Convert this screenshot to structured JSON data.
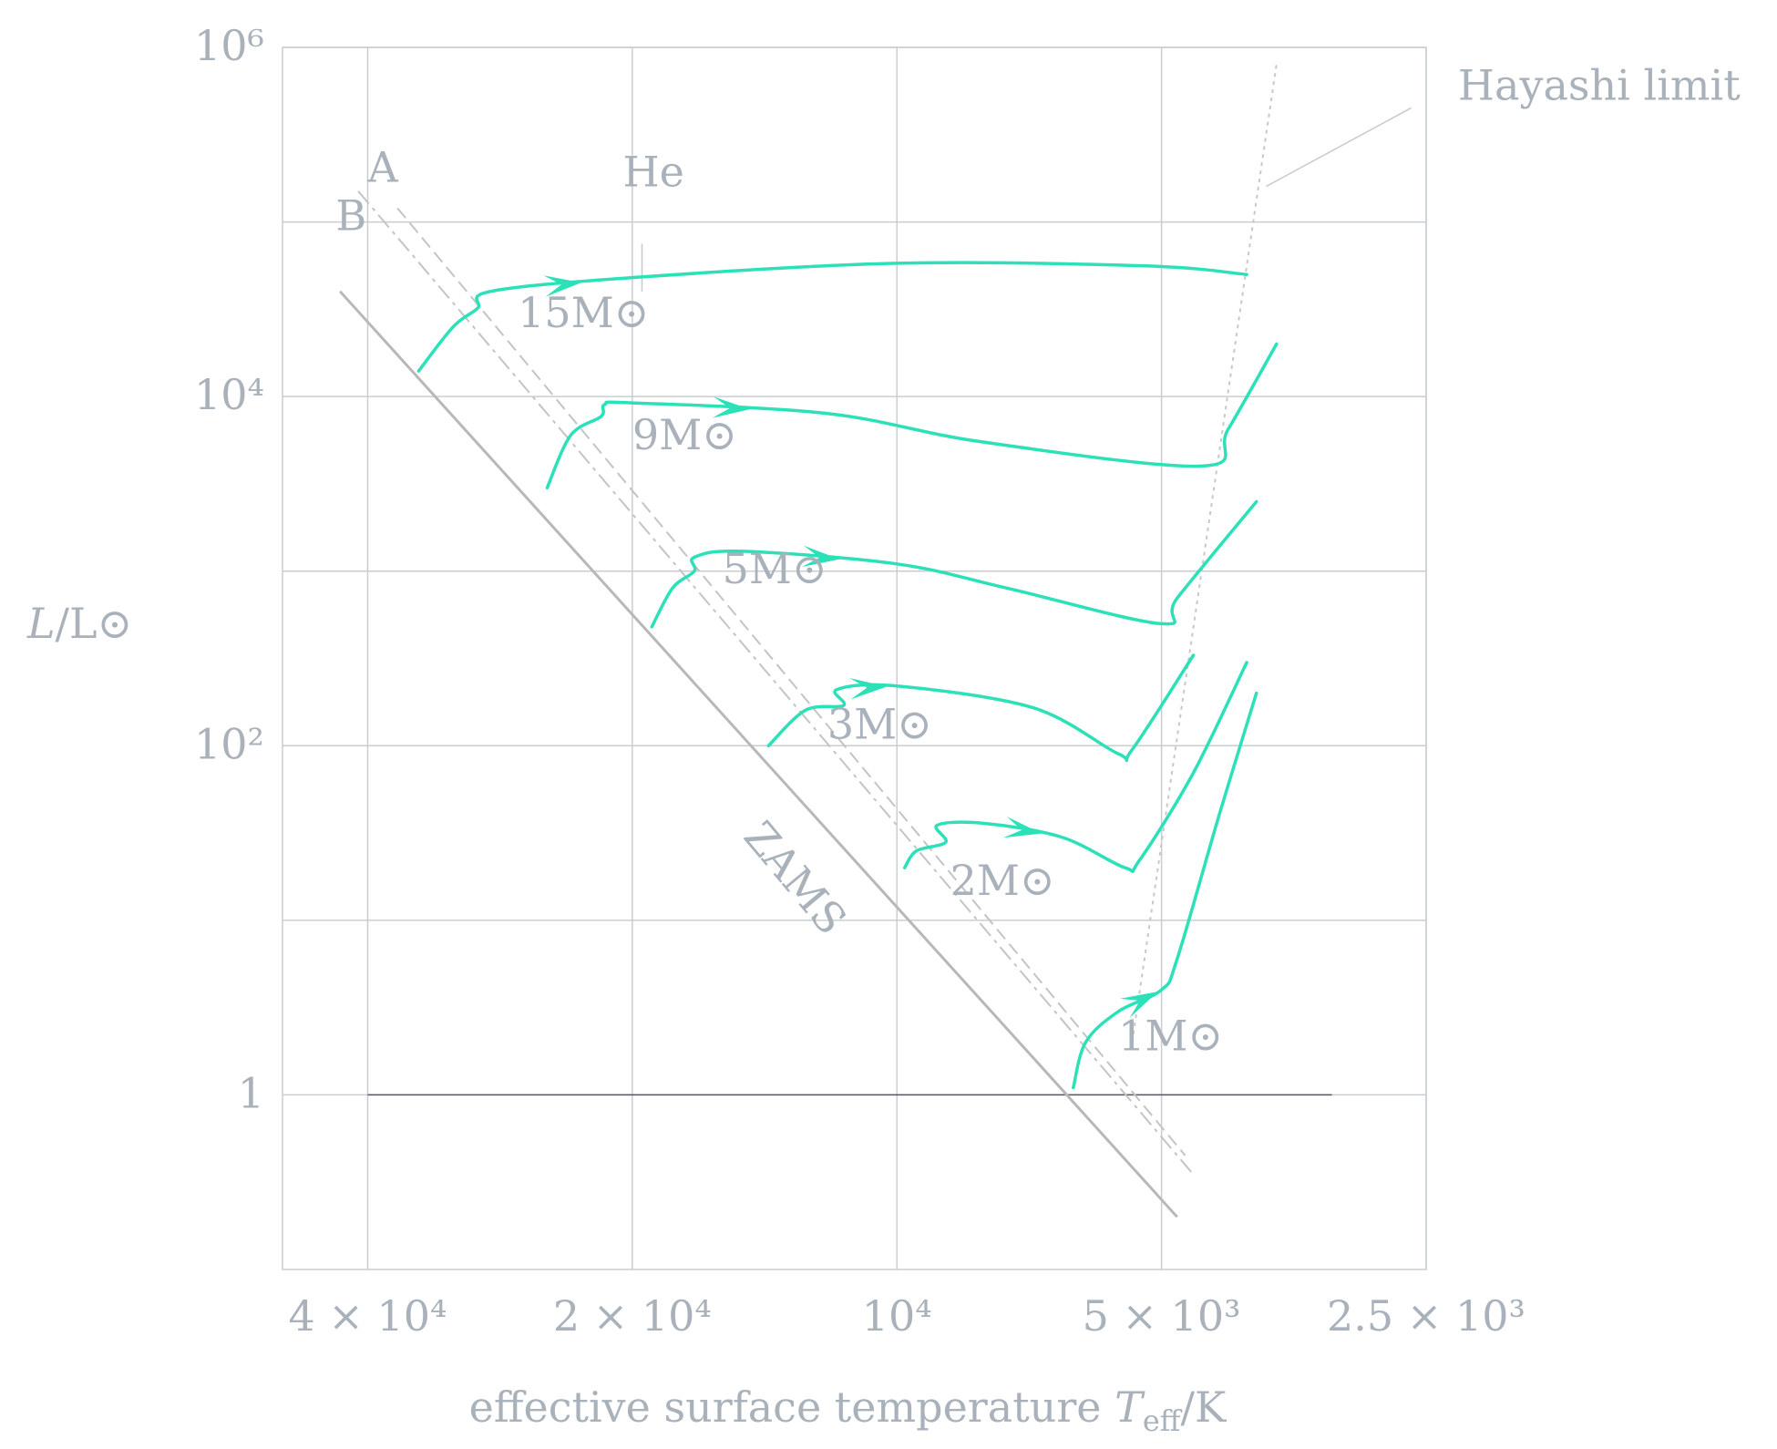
{
  "chart_data": {
    "type": "line",
    "xlabel": "effective surface temperature T_eff/K",
    "ylabel": "L/L⊙",
    "x_scale": "log-reversed",
    "y_scale": "log",
    "xlim": [
      50000,
      2500
    ],
    "ylim": [
      0.1,
      1000000
    ],
    "grid": true,
    "x_ticks": [
      {
        "value": 40000,
        "label": "4 × 10⁴"
      },
      {
        "value": 20000,
        "label": "2 × 10⁴"
      },
      {
        "value": 10000,
        "label": "10⁴"
      },
      {
        "value": 5000,
        "label": "5 × 10³"
      },
      {
        "value": 2500,
        "label": "2.5 × 10³"
      }
    ],
    "y_ticks": [
      {
        "value": 1,
        "label": "1"
      },
      {
        "value": 100,
        "label": "10²"
      },
      {
        "value": 10000,
        "label": "10⁴"
      },
      {
        "value": 1000000,
        "label": "10⁶"
      }
    ],
    "y_gridlines": [
      1,
      10,
      100,
      1000,
      10000,
      100000,
      1000000
    ],
    "colors": {
      "track": "#2ce0b8",
      "grid": "#c9cdd2",
      "zams": "#b8b8b8",
      "text": "#a9b1bb"
    },
    "reference_lines": [
      {
        "name": "ZAMS",
        "points": [
          [
            43000,
            40000
          ],
          [
            4800,
            0.2
          ]
        ]
      },
      {
        "name": "A",
        "points": [
          [
            37000,
            120000
          ],
          [
            4700,
            0.45
          ]
        ]
      },
      {
        "name": "B",
        "points": [
          [
            41000,
            150000
          ],
          [
            4600,
            0.35
          ]
        ]
      },
      {
        "name": "Hayashi limit",
        "points": [
          [
            5400,
            2
          ],
          [
            3700,
            800000
          ]
        ]
      }
    ],
    "series": [
      {
        "name": "15M⊙",
        "points": [
          [
            35000,
            14000
          ],
          [
            32000,
            25000
          ],
          [
            30000,
            32000
          ],
          [
            29000,
            40000
          ],
          [
            20000,
            48000
          ],
          [
            10000,
            58000
          ],
          [
            5200,
            56000
          ],
          [
            4000,
            50000
          ]
        ]
      },
      {
        "name": "9M⊙",
        "points": [
          [
            25000,
            3000
          ],
          [
            23500,
            6000
          ],
          [
            21700,
            7700
          ],
          [
            21500,
            9000
          ],
          [
            20000,
            9200
          ],
          [
            12000,
            8000
          ],
          [
            8000,
            5500
          ],
          [
            4500,
            4000
          ],
          [
            4200,
            6500
          ],
          [
            3700,
            20000
          ]
        ]
      },
      {
        "name": "5M⊙",
        "points": [
          [
            19000,
            480
          ],
          [
            18000,
            800
          ],
          [
            17000,
            1000
          ],
          [
            17000,
            1200
          ],
          [
            15000,
            1300
          ],
          [
            10000,
            1100
          ],
          [
            7500,
            800
          ],
          [
            5000,
            500
          ],
          [
            4800,
            700
          ],
          [
            3900,
            2500
          ]
        ]
      },
      {
        "name": "3M⊙",
        "points": [
          [
            14000,
            100
          ],
          [
            12700,
            160
          ],
          [
            11500,
            170
          ],
          [
            11700,
            210
          ],
          [
            10000,
            220
          ],
          [
            7000,
            165
          ],
          [
            5600,
            90
          ],
          [
            5400,
            95
          ],
          [
            4600,
            330
          ]
        ]
      },
      {
        "name": "2M⊙",
        "points": [
          [
            9800,
            20
          ],
          [
            9500,
            25
          ],
          [
            8800,
            28
          ],
          [
            9000,
            35
          ],
          [
            8000,
            36
          ],
          [
            6500,
            30
          ],
          [
            5500,
            20
          ],
          [
            5300,
            22
          ],
          [
            4600,
            70
          ],
          [
            4000,
            300
          ]
        ]
      },
      {
        "name": "1M⊙",
        "points": [
          [
            6300,
            1.1
          ],
          [
            6100,
            2.0
          ],
          [
            5600,
            3
          ],
          [
            5000,
            4
          ],
          [
            4800,
            6
          ],
          [
            4300,
            40
          ],
          [
            3900,
            200
          ]
        ]
      }
    ],
    "annotations": [
      {
        "text": "A",
        "x": 40000,
        "y": 170000
      },
      {
        "text": "B",
        "x": 43500,
        "y": 90000
      },
      {
        "text": "He",
        "x": 20500,
        "y": 160000
      },
      {
        "text": "15M⊙",
        "x": 27000,
        "y": 25000
      },
      {
        "text": "9M⊙",
        "x": 20000,
        "y": 5000
      },
      {
        "text": "5M⊙",
        "x": 15800,
        "y": 850
      },
      {
        "text": "3M⊙",
        "x": 12000,
        "y": 110
      },
      {
        "text": "2M⊙",
        "x": 8700,
        "y": 14
      },
      {
        "text": "1M⊙",
        "x": 5600,
        "y": 1.8
      },
      {
        "text": "ZAMS",
        "x": 15000,
        "y": 30,
        "rotate": 50
      },
      {
        "text": "Hayashi limit",
        "x": 2300,
        "y": 500000
      }
    ]
  }
}
